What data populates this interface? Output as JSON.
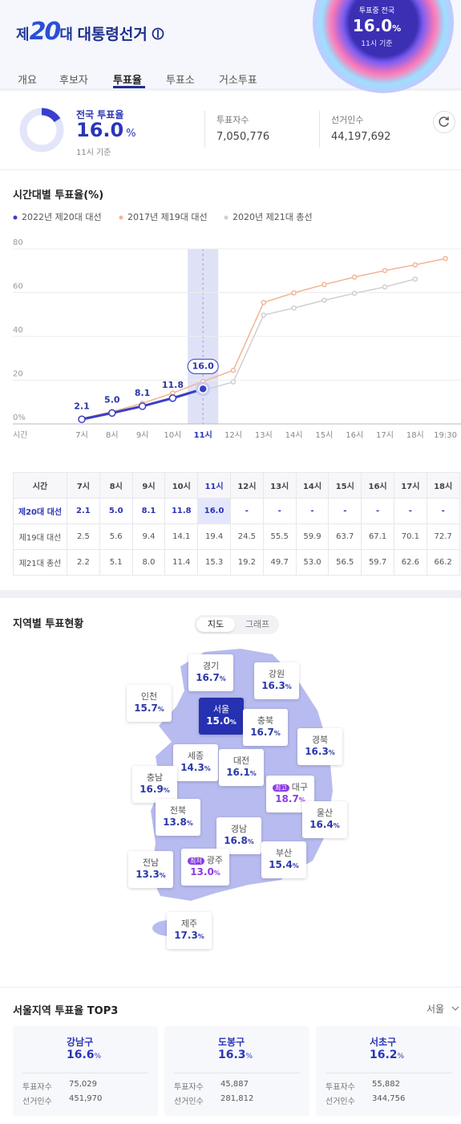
{
  "header": {
    "title_prefix": "제",
    "title_number": "20",
    "title_suffix": "대",
    "title": "대통령선거",
    "badge": {
      "label": "투표중 전국",
      "value": "16.0",
      "unit": "%",
      "time": "11시 기준"
    }
  },
  "tabs": {
    "items": [
      "개요",
      "후보자",
      "투표율",
      "투표소",
      "거소투표"
    ],
    "active": 2
  },
  "summary": {
    "label": "전국 투표율",
    "value": "16.0",
    "unit": "%",
    "time": "11시 기준",
    "stats": [
      {
        "label": "투표자수",
        "value": "7,050,776"
      },
      {
        "label": "선거인수",
        "value": "44,197,692"
      }
    ]
  },
  "chart_data": {
    "type": "line",
    "title": "시간대별 투표율(%)",
    "xlabel": "시간",
    "categories": [
      "7시",
      "8시",
      "9시",
      "10시",
      "11시",
      "12시",
      "13시",
      "14시",
      "15시",
      "16시",
      "17시",
      "18시",
      "19:30"
    ],
    "series": [
      {
        "name": "2022년 제20대 대선",
        "color": "#3a3fc4",
        "values": [
          2.1,
          5.0,
          8.1,
          11.8,
          16.0,
          null,
          null,
          null,
          null,
          null,
          null,
          null,
          null
        ],
        "value_labels": [
          "2.1",
          "5.0",
          "8.1",
          "11.8",
          "16.0",
          null,
          null,
          null,
          null,
          null,
          null,
          null,
          null
        ]
      },
      {
        "name": "2017년 제19대 대선",
        "color": "#f3b496",
        "values": [
          2.5,
          5.6,
          9.4,
          14.1,
          19.4,
          24.5,
          55.5,
          59.9,
          63.7,
          67.1,
          70.1,
          72.7,
          75.6
        ]
      },
      {
        "name": "2020년 제21대 총선",
        "color": "#cfcfcf",
        "values": [
          2.2,
          5.1,
          8.0,
          11.4,
          15.3,
          19.2,
          49.7,
          53.0,
          56.5,
          59.7,
          62.6,
          66.2,
          null
        ]
      }
    ],
    "ylim": [
      0,
      80
    ],
    "yticks": [
      {
        "value": 0,
        "label": "0%"
      },
      20,
      40,
      60,
      80
    ],
    "grid": true
  },
  "table": {
    "header": [
      "시간",
      "7시",
      "8시",
      "9시",
      "10시",
      "11시",
      "12시",
      "13시",
      "14시",
      "15시",
      "16시",
      "17시",
      "18시"
    ],
    "rows": [
      [
        "제20대 대선",
        "2.1",
        "5.0",
        "8.1",
        "11.8",
        "16.0",
        "-",
        "-",
        "-",
        "-",
        "-",
        "-",
        "-"
      ],
      [
        "제19대 대선",
        "2.5",
        "5.6",
        "9.4",
        "14.1",
        "19.4",
        "24.5",
        "55.5",
        "59.9",
        "63.7",
        "67.1",
        "70.1",
        "72.7"
      ],
      [
        "제21대 총선",
        "2.2",
        "5.1",
        "8.0",
        "11.4",
        "15.3",
        "19.2",
        "49.7",
        "53.0",
        "56.5",
        "59.7",
        "62.6",
        "66.2"
      ]
    ]
  },
  "regions": {
    "title": "지역별 투표현황",
    "toggle": [
      "지도",
      "그래프"
    ],
    "toggle_active": 0,
    "unit": "%",
    "items": [
      {
        "name": "경기",
        "value": "16.7"
      },
      {
        "name": "강원",
        "value": "16.3"
      },
      {
        "name": "인천",
        "value": "15.7"
      },
      {
        "name": "서울",
        "value": "15.0"
      },
      {
        "name": "충북",
        "value": "16.7"
      },
      {
        "name": "경북",
        "value": "16.3"
      },
      {
        "name": "세종",
        "value": "14.3"
      },
      {
        "name": "대전",
        "value": "16.1"
      },
      {
        "name": "충남",
        "value": "16.9"
      },
      {
        "name": "대구",
        "value": "18.7",
        "badge": "최고"
      },
      {
        "name": "울산",
        "value": "16.4"
      },
      {
        "name": "전북",
        "value": "13.8"
      },
      {
        "name": "경남",
        "value": "16.8"
      },
      {
        "name": "부산",
        "value": "15.4"
      },
      {
        "name": "전남",
        "value": "13.3"
      },
      {
        "name": "광주",
        "value": "13.0",
        "badge": "최저"
      },
      {
        "name": "제주",
        "value": "17.3"
      }
    ]
  },
  "top3": {
    "title": "서울지역 투표율 TOP3",
    "selector": "서울",
    "unit": "%",
    "labels": [
      "투표자수",
      "선거인수"
    ],
    "cards": [
      {
        "name": "강남구",
        "value": "16.6",
        "voters": "75,029",
        "electors": "451,970"
      },
      {
        "name": "도봉구",
        "value": "16.3",
        "voters": "45,887",
        "electors": "281,812"
      },
      {
        "name": "서초구",
        "value": "16.2",
        "voters": "55,882",
        "electors": "344,756"
      }
    ]
  }
}
